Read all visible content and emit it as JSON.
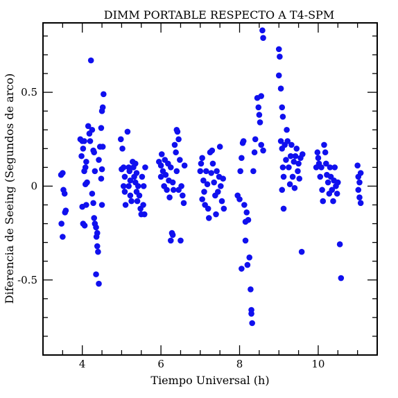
{
  "chart_data": {
    "type": "scatter",
    "title": "DIMM PORTABLE RESPECTO A T4-SPM",
    "xlabel": "Tiempo Universal (h)",
    "ylabel": "Diferencia de Seeing (Segundos de arco)",
    "xlim": [
      3.0,
      11.5
    ],
    "ylim": [
      -0.9,
      0.87
    ],
    "xticks": [
      4,
      6,
      8,
      10
    ],
    "xtick_labels": [
      "4",
      "6",
      "8",
      "10"
    ],
    "yticks": [
      -0.5,
      0,
      0.5
    ],
    "ytick_labels": [
      "-0.5",
      "0",
      "0.5"
    ],
    "grid": false,
    "legend": "none",
    "marker_color": "#1010ee",
    "series": [
      {
        "points": [
          [
            3.46,
            0.06
          ],
          [
            3.5,
            0.07
          ],
          [
            3.52,
            -0.02
          ],
          [
            3.47,
            -0.2
          ],
          [
            3.5,
            -0.27
          ],
          [
            3.55,
            -0.04
          ],
          [
            3.58,
            -0.13
          ],
          [
            3.56,
            -0.14
          ],
          [
            3.95,
            0.25
          ],
          [
            4.0,
            0.24
          ],
          [
            4.02,
            0.2
          ],
          [
            4.05,
            0.24
          ],
          [
            3.98,
            0.16
          ],
          [
            4.08,
            0.1
          ],
          [
            4.05,
            0.08
          ],
          [
            4.1,
            0.13
          ],
          [
            4.12,
            0.02
          ],
          [
            4.08,
            0.01
          ],
          [
            4.0,
            -0.11
          ],
          [
            4.02,
            -0.2
          ],
          [
            4.06,
            -0.21
          ],
          [
            4.1,
            -0.1
          ],
          [
            4.15,
            0.32
          ],
          [
            4.18,
            0.28
          ],
          [
            4.22,
            0.67
          ],
          [
            4.2,
            0.24
          ],
          [
            4.25,
            0.3
          ],
          [
            4.28,
            0.19
          ],
          [
            4.3,
            0.18
          ],
          [
            4.32,
            0.08
          ],
          [
            4.25,
            -0.04
          ],
          [
            4.28,
            -0.09
          ],
          [
            4.3,
            -0.17
          ],
          [
            4.32,
            -0.2
          ],
          [
            4.35,
            -0.22
          ],
          [
            4.38,
            -0.25
          ],
          [
            4.36,
            -0.27
          ],
          [
            4.38,
            -0.32
          ],
          [
            4.4,
            -0.35
          ],
          [
            4.35,
            -0.47
          ],
          [
            4.42,
            -0.52
          ],
          [
            4.42,
            0.14
          ],
          [
            4.45,
            0.21
          ],
          [
            4.48,
            0.31
          ],
          [
            4.5,
            0.4
          ],
          [
            4.52,
            0.42
          ],
          [
            4.54,
            0.49
          ],
          [
            4.52,
            0.21
          ],
          [
            4.5,
            0.09
          ],
          [
            4.48,
            0.04
          ],
          [
            4.5,
            -0.1
          ],
          [
            4.98,
            0.25
          ],
          [
            5.02,
            0.2
          ],
          [
            5.0,
            0.09
          ],
          [
            5.05,
            0.1
          ],
          [
            5.08,
            0.05
          ],
          [
            5.05,
            0.0
          ],
          [
            5.08,
            -0.03
          ],
          [
            5.1,
            -0.1
          ],
          [
            5.15,
            0.29
          ],
          [
            5.18,
            0.1
          ],
          [
            5.2,
            0.08
          ],
          [
            5.22,
            0.03
          ],
          [
            5.18,
            0.0
          ],
          [
            5.22,
            -0.05
          ],
          [
            5.25,
            -0.08
          ],
          [
            5.28,
            0.13
          ],
          [
            5.3,
            0.1
          ],
          [
            5.32,
            0.05
          ],
          [
            5.35,
            0.02
          ],
          [
            5.38,
            -0.03
          ],
          [
            5.4,
            -0.08
          ],
          [
            5.35,
            0.12
          ],
          [
            5.38,
            0.07
          ],
          [
            5.42,
            0.0
          ],
          [
            5.45,
            -0.05
          ],
          [
            5.48,
            -0.12
          ],
          [
            5.5,
            -0.15
          ],
          [
            5.52,
            0.05
          ],
          [
            5.55,
            -0.1
          ],
          [
            5.58,
            -0.15
          ],
          [
            5.6,
            0.1
          ],
          [
            5.56,
            0.0
          ],
          [
            5.95,
            0.13
          ],
          [
            6.0,
            0.11
          ],
          [
            6.0,
            0.05
          ],
          [
            6.02,
            0.17
          ],
          [
            6.05,
            0.08
          ],
          [
            6.08,
            0.0
          ],
          [
            6.1,
            0.14
          ],
          [
            6.12,
            0.06
          ],
          [
            6.15,
            -0.02
          ],
          [
            6.18,
            0.12
          ],
          [
            6.2,
            0.03
          ],
          [
            6.22,
            -0.06
          ],
          [
            6.25,
            0.1
          ],
          [
            6.25,
            -0.29
          ],
          [
            6.28,
            -0.25
          ],
          [
            6.3,
            -0.26
          ],
          [
            6.3,
            0.02
          ],
          [
            6.32,
            -0.02
          ],
          [
            6.35,
            0.22
          ],
          [
            6.38,
            0.18
          ],
          [
            6.4,
            0.3
          ],
          [
            6.42,
            0.29
          ],
          [
            6.45,
            0.25
          ],
          [
            6.4,
            0.08
          ],
          [
            6.45,
            -0.02
          ],
          [
            6.48,
            0.14
          ],
          [
            6.5,
            -0.29
          ],
          [
            6.52,
            0.0
          ],
          [
            6.55,
            -0.05
          ],
          [
            6.58,
            -0.09
          ],
          [
            6.6,
            0.11
          ],
          [
            7.0,
            0.08
          ],
          [
            7.02,
            0.12
          ],
          [
            7.05,
            0.15
          ],
          [
            7.05,
            -0.07
          ],
          [
            7.08,
            0.03
          ],
          [
            7.1,
            -0.03
          ],
          [
            7.12,
            -0.1
          ],
          [
            7.15,
            0.08
          ],
          [
            7.18,
            0.01
          ],
          [
            7.2,
            -0.12
          ],
          [
            7.22,
            -0.17
          ],
          [
            7.25,
            0.18
          ],
          [
            7.28,
            0.07
          ],
          [
            7.3,
            0.19
          ],
          [
            7.32,
            0.12
          ],
          [
            7.35,
            0.02
          ],
          [
            7.38,
            -0.05
          ],
          [
            7.4,
            -0.15
          ],
          [
            7.42,
            0.08
          ],
          [
            7.45,
            -0.03
          ],
          [
            7.48,
            0.05
          ],
          [
            7.5,
            0.21
          ],
          [
            7.52,
            0.0
          ],
          [
            7.55,
            -0.08
          ],
          [
            7.58,
            0.04
          ],
          [
            7.6,
            -0.12
          ],
          [
            7.95,
            -0.05
          ],
          [
            8.0,
            -0.07
          ],
          [
            8.02,
            0.08
          ],
          [
            8.05,
            0.15
          ],
          [
            8.05,
            -0.44
          ],
          [
            8.08,
            0.23
          ],
          [
            8.1,
            0.24
          ],
          [
            8.12,
            -0.1
          ],
          [
            8.15,
            -0.19
          ],
          [
            8.15,
            -0.29
          ],
          [
            8.18,
            -0.14
          ],
          [
            8.2,
            -0.42
          ],
          [
            8.22,
            -0.18
          ],
          [
            8.25,
            -0.38
          ],
          [
            8.28,
            -0.55
          ],
          [
            8.3,
            -0.66
          ],
          [
            8.3,
            -0.68
          ],
          [
            8.32,
            -0.73
          ],
          [
            8.35,
            0.08
          ],
          [
            8.38,
            0.18
          ],
          [
            8.4,
            0.25
          ],
          [
            8.45,
            0.47
          ],
          [
            8.48,
            0.42
          ],
          [
            8.5,
            0.38
          ],
          [
            8.52,
            0.34
          ],
          [
            8.55,
            0.48
          ],
          [
            8.55,
            0.22
          ],
          [
            8.58,
            0.83
          ],
          [
            8.6,
            0.79
          ],
          [
            8.6,
            0.19
          ],
          [
            9.0,
            0.73
          ],
          [
            9.02,
            0.69
          ],
          [
            9.0,
            0.59
          ],
          [
            9.05,
            0.52
          ],
          [
            9.08,
            0.42
          ],
          [
            9.1,
            0.37
          ],
          [
            9.05,
            0.24
          ],
          [
            9.08,
            0.2
          ],
          [
            9.1,
            0.1
          ],
          [
            9.12,
            0.05
          ],
          [
            9.08,
            -0.02
          ],
          [
            9.12,
            -0.12
          ],
          [
            9.15,
            0.22
          ],
          [
            9.18,
            0.14
          ],
          [
            9.2,
            0.3
          ],
          [
            9.22,
            0.24
          ],
          [
            9.25,
            0.1
          ],
          [
            9.28,
            0.01
          ],
          [
            9.3,
            0.16
          ],
          [
            9.32,
            0.22
          ],
          [
            9.35,
            0.05
          ],
          [
            9.38,
            0.13
          ],
          [
            9.4,
            -0.01
          ],
          [
            9.42,
            0.16
          ],
          [
            9.45,
            0.2
          ],
          [
            9.48,
            0.08
          ],
          [
            9.5,
            0.12
          ],
          [
            9.52,
            0.04
          ],
          [
            9.55,
            0.15
          ],
          [
            9.58,
            -0.35
          ],
          [
            9.6,
            0.17
          ],
          [
            9.95,
            0.1
          ],
          [
            9.98,
            0.18
          ],
          [
            10.0,
            0.15
          ],
          [
            10.02,
            0.12
          ],
          [
            10.05,
            0.05
          ],
          [
            10.08,
            0.1
          ],
          [
            10.1,
            -0.02
          ],
          [
            10.12,
            -0.08
          ],
          [
            10.15,
            0.22
          ],
          [
            10.18,
            0.18
          ],
          [
            10.2,
            0.12
          ],
          [
            10.22,
            0.06
          ],
          [
            10.25,
            0.02
          ],
          [
            10.28,
            -0.04
          ],
          [
            10.3,
            0.1
          ],
          [
            10.32,
            0.05
          ],
          [
            10.35,
            -0.02
          ],
          [
            10.38,
            -0.08
          ],
          [
            10.4,
            0.03
          ],
          [
            10.42,
            0.1
          ],
          [
            10.45,
            0.0
          ],
          [
            10.48,
            -0.04
          ],
          [
            10.5,
            0.02
          ],
          [
            10.55,
            -0.31
          ],
          [
            10.58,
            -0.49
          ],
          [
            11.0,
            0.11
          ],
          [
            11.02,
            0.05
          ],
          [
            11.05,
            0.02
          ],
          [
            11.02,
            -0.02
          ],
          [
            11.05,
            -0.06
          ],
          [
            11.08,
            -0.09
          ],
          [
            11.08,
            0.07
          ]
        ]
      }
    ]
  }
}
